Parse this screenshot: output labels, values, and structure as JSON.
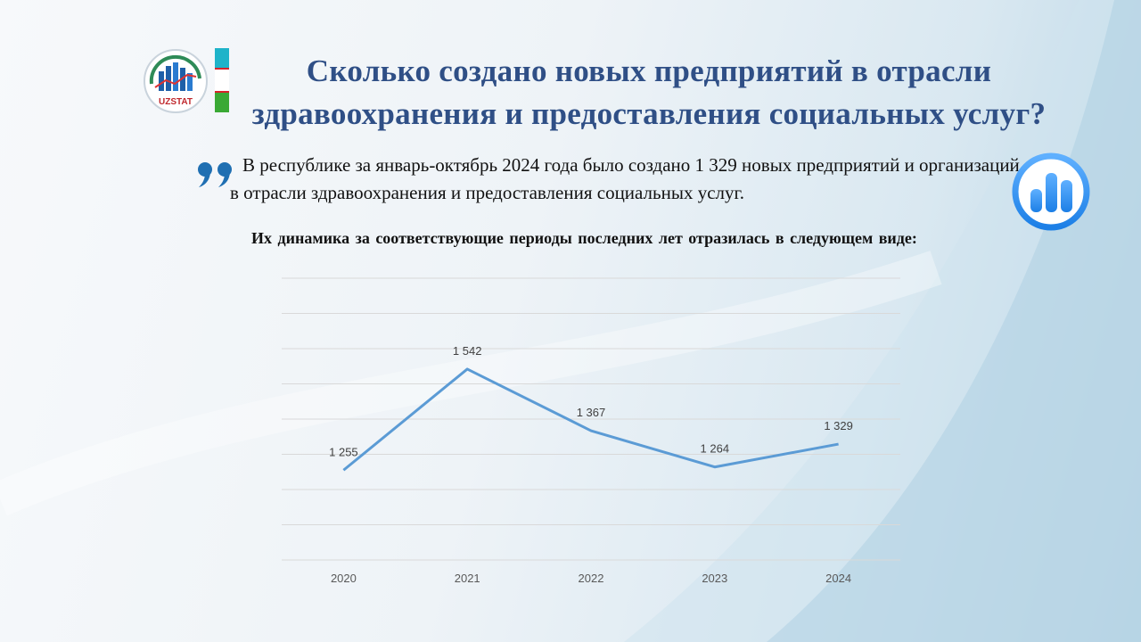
{
  "header": {
    "title_line1": "Сколько создано новых предприятий в отрасли",
    "title_line2": "здравоохранения и предоставления социальных услуг?",
    "logo_text": "UZSTAT"
  },
  "lead": {
    "quote_mark": "❞",
    "text": "В республике за январь-октябрь 2024 года было создано 1 329 новых предприятий и организаций в отрасли здравоохранения и предоставления социальных услуг."
  },
  "subtitle": "Их динамика за соответствующие  периоды последних лет отразилась в следующем виде:",
  "colors": {
    "title": "#2f4f86",
    "line": "#5b9bd5",
    "grid": "#d9d9d9",
    "icon": "#2a8ef0"
  },
  "chart_data": {
    "type": "line",
    "categories": [
      "2020",
      "2021",
      "2022",
      "2023",
      "2024"
    ],
    "series": [
      {
        "values": [
          1255,
          1542,
          1367,
          1264,
          1329
        ],
        "labels": [
          "1 255",
          "1 542",
          "1 367",
          "1 264",
          "1 329"
        ]
      }
    ],
    "ylim": [
      1000,
      1800
    ],
    "grid": true,
    "legend": "none",
    "title": "",
    "xlabel": "",
    "ylabel": ""
  }
}
